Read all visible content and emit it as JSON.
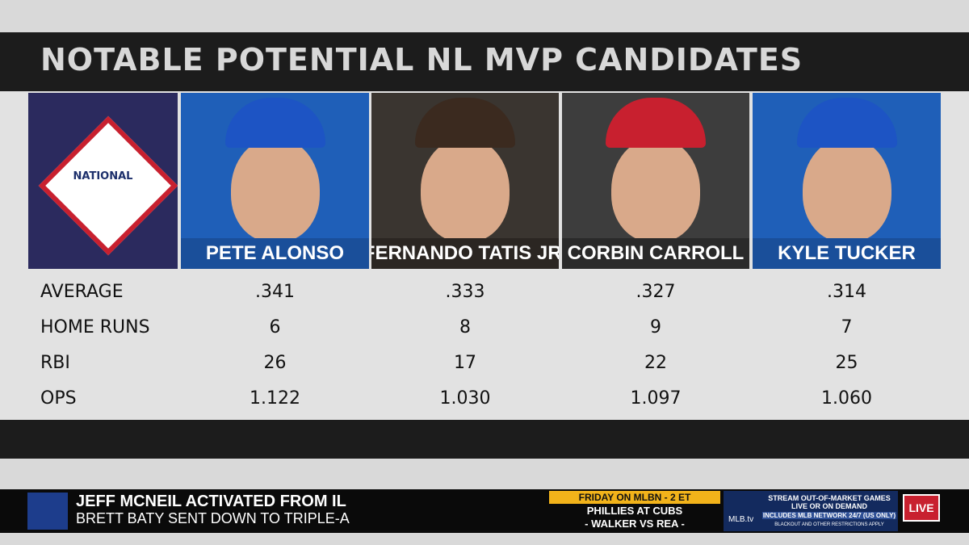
{
  "header": {
    "title": "NOTABLE POTENTIAL NL MVP CANDIDATES"
  },
  "logo": {
    "label": "NATIONAL"
  },
  "players": [
    "PETE ALONSO",
    "FERNANDO TATIS JR.",
    "CORBIN CARROLL",
    "KYLE TUCKER"
  ],
  "table": {
    "rows": [
      {
        "label": "AVERAGE",
        "values": [
          ".341",
          ".333",
          ".327",
          ".314"
        ]
      },
      {
        "label": "HOME RUNS",
        "values": [
          "6",
          "8",
          "9",
          "7"
        ]
      },
      {
        "label": "RBI",
        "values": [
          "26",
          "17",
          "22",
          "25"
        ]
      },
      {
        "label": "OPS",
        "values": [
          "1.122",
          "1.030",
          "1.097",
          "1.060"
        ]
      }
    ]
  },
  "ticker": {
    "headline": "JEFF MCNEIL ACTIVATED FROM IL",
    "subline": "BRETT BATY SENT DOWN TO TRIPLE-A",
    "promo_title": "FRIDAY ON MLBN - 2 ET",
    "promo_game": "PHILLIES AT CUBS",
    "promo_pitchers": "- WALKER VS REA -",
    "mlbtv": "MLB.tv",
    "stream_1": "STREAM OUT-OF-MARKET GAMES",
    "stream_2": "LIVE OR ON DEMAND",
    "stream_3": "INCLUDES MLB NETWORK 24/7 (US ONLY)",
    "stream_4": "BLACKOUT AND OTHER RESTRICTIONS APPLY",
    "live": "LIVE"
  }
}
